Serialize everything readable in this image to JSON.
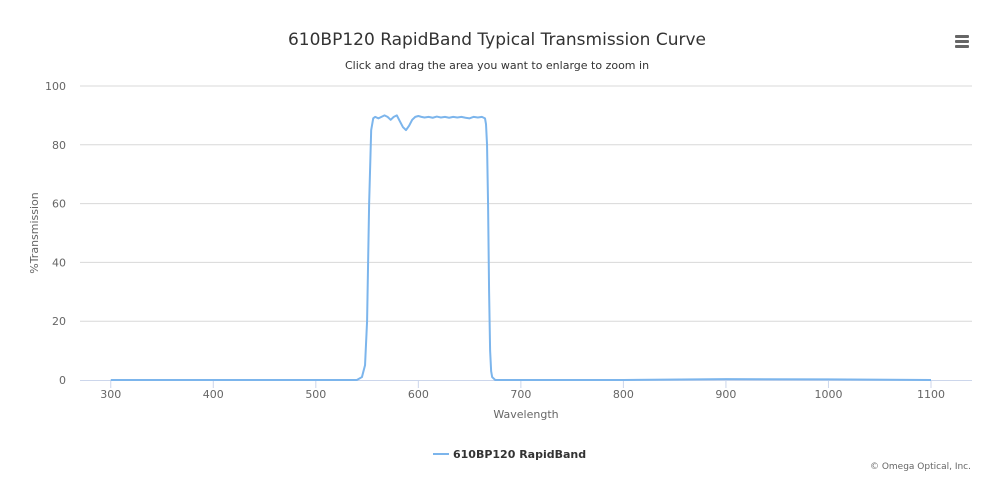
{
  "chart_data": {
    "type": "line",
    "title": "610BP120 RapidBand Typical Transmission Curve",
    "subtitle": "Click and drag the area you want to enlarge to zoom in",
    "xlabel": "Wavelength",
    "ylabel": "%Transmission",
    "xlim": [
      270,
      1140
    ],
    "ylim": [
      0,
      100
    ],
    "x_ticks": [
      300,
      400,
      500,
      600,
      700,
      800,
      900,
      1000,
      1100
    ],
    "y_ticks": [
      0,
      20,
      40,
      60,
      80,
      100
    ],
    "grid": true,
    "legend_position": "bottom-center",
    "series": [
      {
        "name": "610BP120 RapidBand",
        "color": "#7cb5ec",
        "x": [
          300,
          400,
          500,
          540,
          545,
          548,
          550,
          552,
          554,
          556,
          558,
          561,
          564,
          567,
          570,
          573,
          576,
          579,
          582,
          585,
          588,
          591,
          594,
          597,
          600,
          603,
          606,
          610,
          614,
          618,
          622,
          626,
          630,
          634,
          638,
          642,
          646,
          650,
          654,
          658,
          662,
          665,
          666,
          667,
          668,
          669,
          670,
          671,
          672,
          675,
          680,
          700,
          800,
          900,
          1000,
          1100
        ],
        "values": [
          0,
          0,
          0,
          0,
          1,
          5,
          20,
          60,
          85,
          89,
          89.5,
          89,
          89.5,
          90,
          89.5,
          88.5,
          89.5,
          90,
          88,
          86,
          85,
          86.5,
          88.5,
          89.5,
          89.8,
          89.5,
          89.3,
          89.5,
          89.2,
          89.6,
          89.3,
          89.5,
          89.2,
          89.5,
          89.3,
          89.5,
          89.2,
          89,
          89.5,
          89.3,
          89.5,
          89,
          87,
          80,
          60,
          30,
          10,
          3,
          1,
          0,
          0,
          0,
          0,
          0.3,
          0.2,
          0
        ]
      }
    ]
  },
  "credit": "© Omega Optical, Inc.",
  "menu_icon": "hamburger-menu-icon"
}
